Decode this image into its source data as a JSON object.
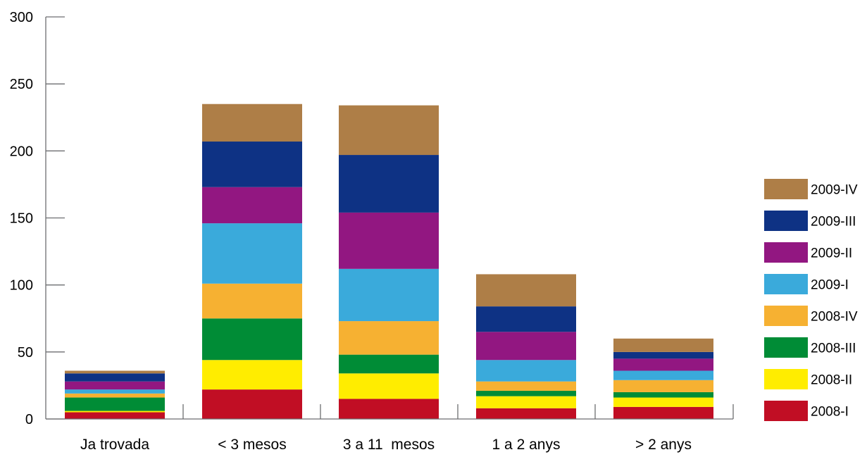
{
  "chart_data": {
    "type": "bar",
    "stacked": true,
    "title": "",
    "xlabel": "",
    "ylabel": "",
    "ylim": [
      0,
      300
    ],
    "yticks": [
      0,
      50,
      100,
      150,
      200,
      250,
      300
    ],
    "grid": false,
    "legend_position": "right",
    "categories": [
      "Ja trovada",
      "< 3 mesos",
      "3 a 11  mesos",
      "1 a 2 anys",
      "> 2 anys"
    ],
    "series": [
      {
        "name": "2008-I",
        "color": "#C10E24",
        "values": [
          5,
          22,
          15,
          8,
          9
        ]
      },
      {
        "name": "2008-II",
        "color": "#FFED00",
        "values": [
          1,
          22,
          19,
          9,
          7
        ]
      },
      {
        "name": "2008-III",
        "color": "#008C36",
        "values": [
          10,
          31,
          14,
          4,
          4
        ]
      },
      {
        "name": "2008-IV",
        "color": "#F6B132",
        "values": [
          3,
          26,
          25,
          7,
          9
        ]
      },
      {
        "name": "2009-I",
        "color": "#3AAADB",
        "values": [
          3,
          45,
          39,
          16,
          7
        ]
      },
      {
        "name": "2009-II",
        "color": "#921781",
        "values": [
          6,
          27,
          42,
          21,
          9
        ]
      },
      {
        "name": "2009-III",
        "color": "#0E3284",
        "values": [
          6,
          34,
          43,
          19,
          5
        ]
      },
      {
        "name": "2009-IV",
        "color": "#AE7E47",
        "values": [
          2,
          28,
          37,
          24,
          10
        ]
      }
    ]
  }
}
